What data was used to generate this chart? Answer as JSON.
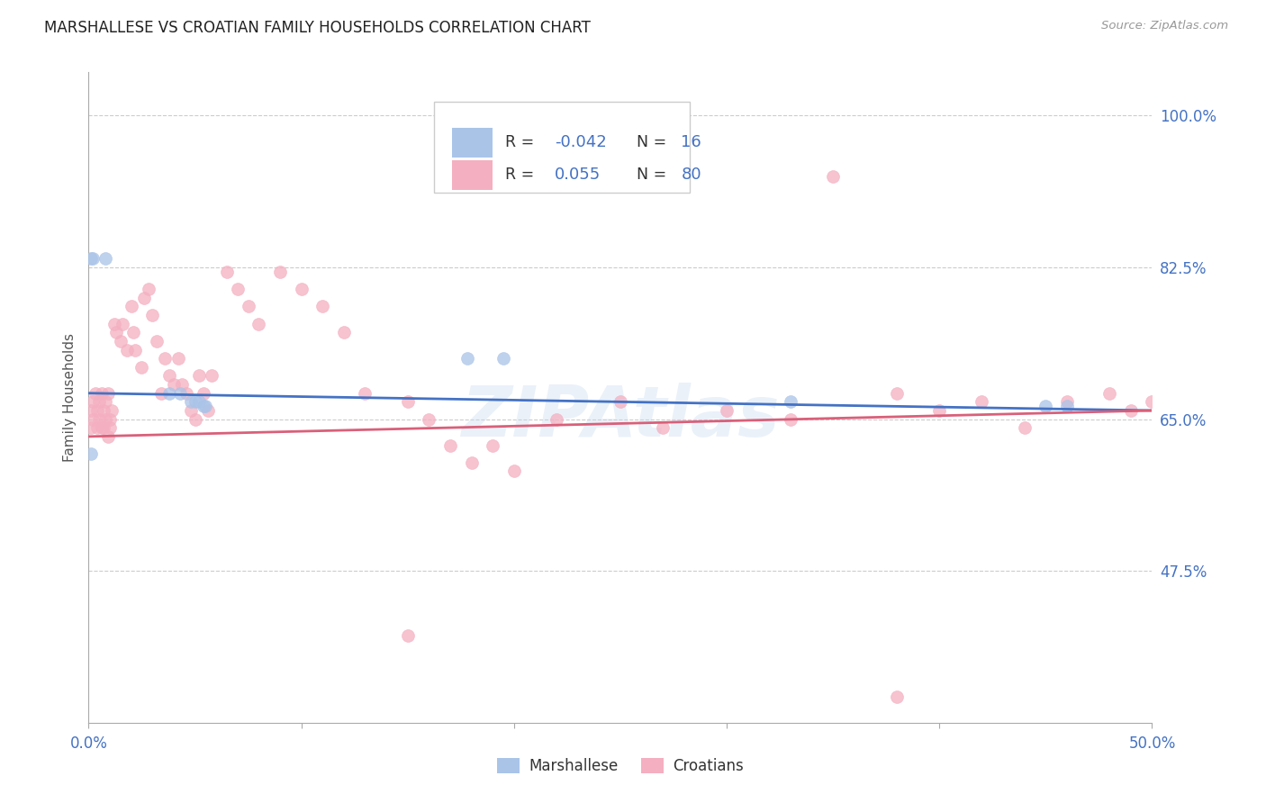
{
  "title": "MARSHALLESE VS CROATIAN FAMILY HOUSEHOLDS CORRELATION CHART",
  "source": "Source: ZipAtlas.com",
  "ylabel": "Family Households",
  "xlim": [
    0.0,
    0.5
  ],
  "ylim": [
    0.3,
    1.05
  ],
  "xtick_positions": [
    0.0,
    0.1,
    0.2,
    0.3,
    0.4,
    0.5
  ],
  "xticklabels": [
    "0.0%",
    "",
    "",
    "",
    "",
    "50.0%"
  ],
  "yticks_right": [
    1.0,
    0.825,
    0.65,
    0.475
  ],
  "ytick_labels_right": [
    "100.0%",
    "82.5%",
    "65.0%",
    "47.5%"
  ],
  "marshallese_color": "#aac4e8",
  "croatian_color": "#f4afc0",
  "marshallese_line_color": "#4472c4",
  "croatian_line_color": "#d9607a",
  "blue_axis_color": "#4472c4",
  "grid_color": "#cccccc",
  "background_color": "#ffffff",
  "title_color": "#222222",
  "marker_size": 100,
  "marker_alpha": 0.75,
  "blue_trend_y0": 0.68,
  "blue_trend_y1": 0.66,
  "pink_trend_y0": 0.63,
  "pink_trend_y1": 0.66,
  "watermark_color": "#c5d8ef",
  "watermark_alpha": 0.35,
  "legend_R_text_color": "#333333",
  "legend_val_color": "#4472c4",
  "source_color": "#999999"
}
